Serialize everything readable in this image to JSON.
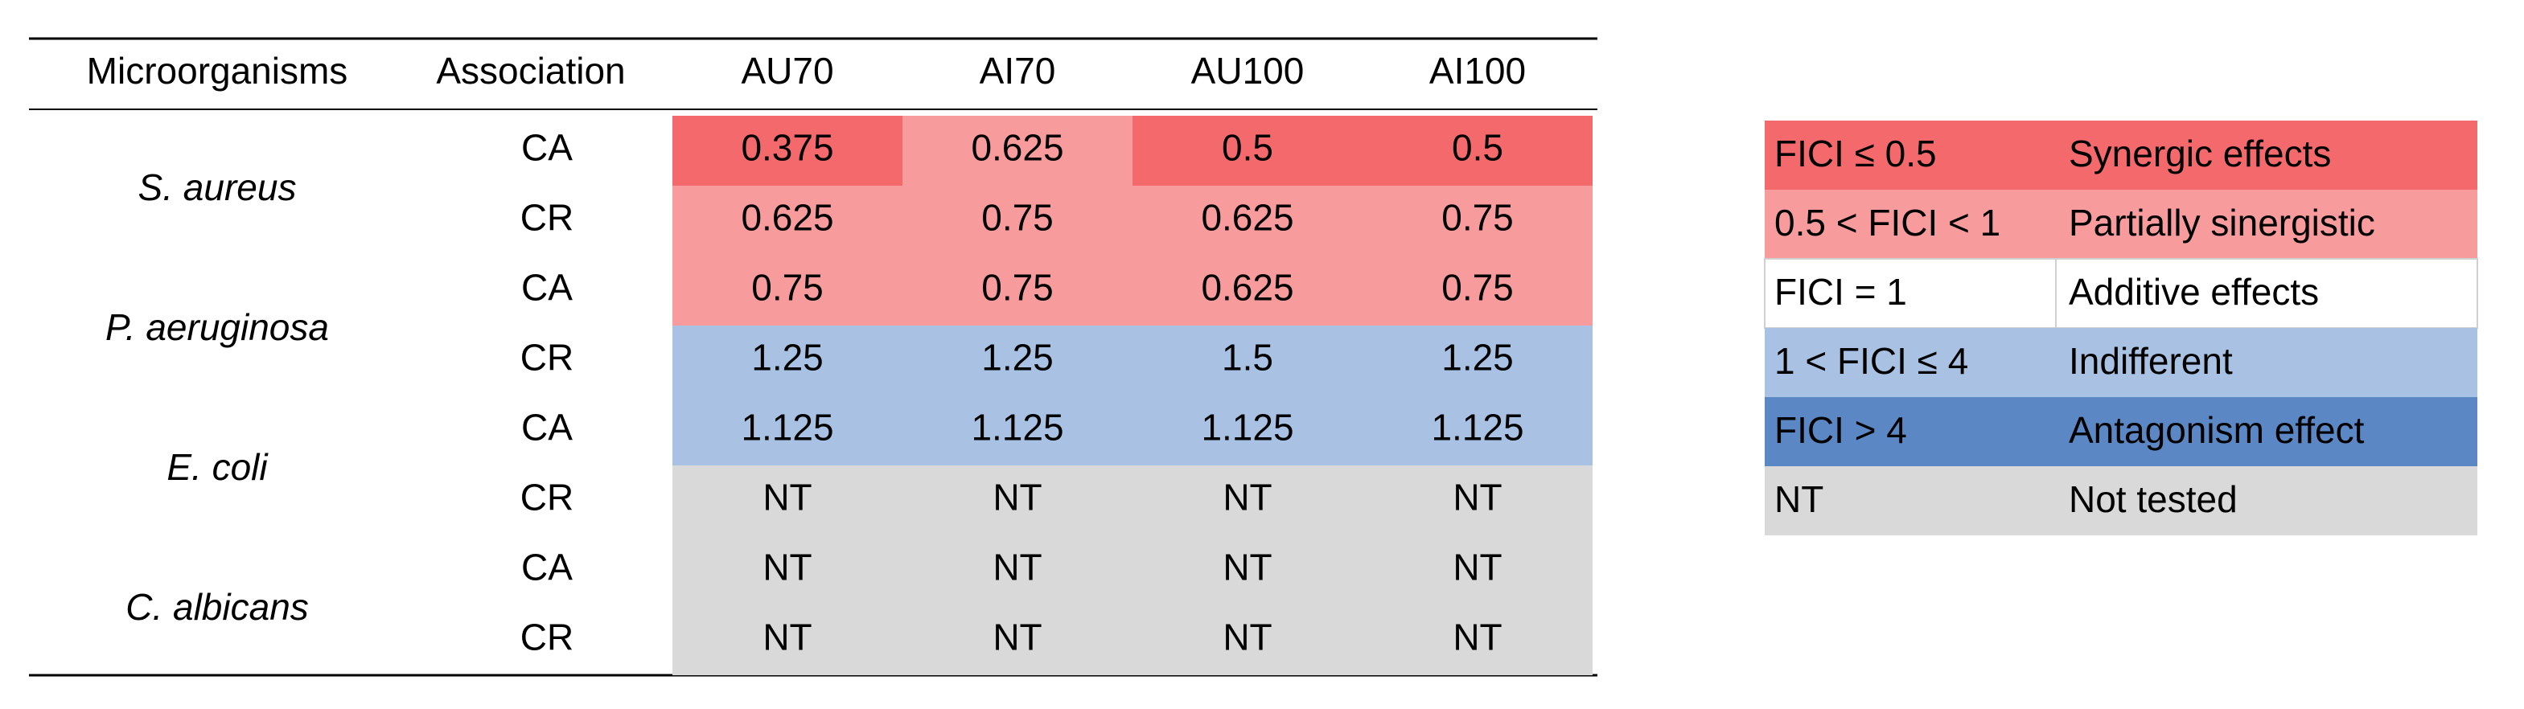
{
  "table": {
    "headers": [
      "Microorganisms",
      "Association",
      "AU70",
      "AI70",
      "AU100",
      "AI100"
    ],
    "groups": [
      {
        "organism": "S. aureus",
        "rows": [
          {
            "association": "CA",
            "values": [
              "0.375",
              "0.625",
              "0.5",
              "0.5"
            ],
            "colors": [
              "#f4696b",
              "#f79b9c",
              "#f4696b",
              "#f4696b"
            ]
          },
          {
            "association": "CR",
            "values": [
              "0.625",
              "0.75",
              "0.625",
              "0.75"
            ],
            "colors": [
              "#f79b9c",
              "#f79b9c",
              "#f79b9c",
              "#f79b9c"
            ]
          }
        ]
      },
      {
        "organism": "P. aeruginosa",
        "rows": [
          {
            "association": "CA",
            "values": [
              "0.75",
              "0.75",
              "0.625",
              "0.75"
            ],
            "colors": [
              "#f79b9c",
              "#f79b9c",
              "#f79b9c",
              "#f79b9c"
            ]
          },
          {
            "association": "CR",
            "values": [
              "1.25",
              "1.25",
              "1.5",
              "1.25"
            ],
            "colors": [
              "#a9c2e4",
              "#a9c2e4",
              "#a9c2e4",
              "#a9c2e4"
            ]
          }
        ]
      },
      {
        "organism": "E. coli",
        "rows": [
          {
            "association": "CA",
            "values": [
              "1.125",
              "1.125",
              "1.125",
              "1.125"
            ],
            "colors": [
              "#a9c2e4",
              "#a9c2e4",
              "#a9c2e4",
              "#a9c2e4"
            ]
          },
          {
            "association": "CR",
            "values": [
              "NT",
              "NT",
              "NT",
              "NT"
            ],
            "colors": [
              "#d9d9d9",
              "#d9d9d9",
              "#d9d9d9",
              "#d9d9d9"
            ]
          }
        ]
      },
      {
        "organism": "C. albicans",
        "rows": [
          {
            "association": "CA",
            "values": [
              "NT",
              "NT",
              "NT",
              "NT"
            ],
            "colors": [
              "#d9d9d9",
              "#d9d9d9",
              "#d9d9d9",
              "#d9d9d9"
            ]
          },
          {
            "association": "CR",
            "values": [
              "NT",
              "NT",
              "NT",
              "NT"
            ],
            "colors": [
              "#d9d9d9",
              "#d9d9d9",
              "#d9d9d9",
              "#d9d9d9"
            ]
          }
        ]
      }
    ]
  },
  "legend": [
    {
      "range": "FICI ≤ 0.5",
      "label": "Synergic effects",
      "color": "#f4696b"
    },
    {
      "range": "0.5 < FICI < 1",
      "label": "Partially sinergistic",
      "color": "#f79b9c"
    },
    {
      "range": "FICI = 1",
      "label": "Additive effects",
      "color": "#ffffff"
    },
    {
      "range": "1 < FICI ≤ 4",
      "label": "Indifferent",
      "color": "#a9c2e4"
    },
    {
      "range": "FICI > 4",
      "label": "Antagonism effect",
      "color": "#5b87c5"
    },
    {
      "range": "NT",
      "label": "Not tested",
      "color": "#d9d9d9"
    }
  ]
}
